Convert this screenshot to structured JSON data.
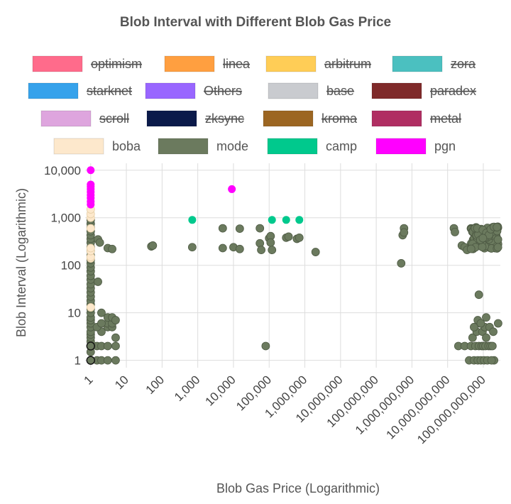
{
  "chart_data": {
    "type": "scatter",
    "title": "Blob Interval with Different Blob Gas Price",
    "xlabel": "Blob Gas Price (Logarithmic)",
    "ylabel": "Blob Interval (Logarithmic)",
    "xscale": "log",
    "yscale": "log",
    "xlim": [
      0.7,
      300000000000
    ],
    "ylim": [
      0.7,
      14000
    ],
    "grid": true,
    "legend_position": "top",
    "x_ticks": [
      1,
      10,
      100,
      1000,
      10000,
      100000,
      1000000,
      10000000,
      100000000,
      1000000000,
      10000000000,
      100000000000
    ],
    "x_tick_labels": [
      "1",
      "10",
      "100",
      "1,000",
      "10,000",
      "100,000",
      "1,000,000",
      "10,000,000",
      "100,000,000",
      "1,000,000,000",
      "10,000,000,000",
      "100,000,000,000"
    ],
    "y_ticks": [
      1,
      10,
      100,
      1000,
      10000
    ],
    "y_tick_labels": [
      "1",
      "10",
      "100",
      "1,000",
      "10,000"
    ],
    "legend": [
      {
        "name": "optimism",
        "color": "#ff6b8b",
        "hidden": true
      },
      {
        "name": "linea",
        "color": "#ff9f40",
        "hidden": true
      },
      {
        "name": "arbitrum",
        "color": "#ffcd56",
        "hidden": true
      },
      {
        "name": "zora",
        "color": "#4bc0c0",
        "hidden": true
      },
      {
        "name": "starknet",
        "color": "#36a2eb",
        "hidden": true
      },
      {
        "name": "Others",
        "color": "#9966ff",
        "hidden": true
      },
      {
        "name": "base",
        "color": "#c9cbcf",
        "hidden": true
      },
      {
        "name": "paradex",
        "color": "#7f2a2a",
        "hidden": true
      },
      {
        "name": "scroll",
        "color": "#dea5de",
        "hidden": true
      },
      {
        "name": "zksync",
        "color": "#0b1a4a",
        "hidden": true
      },
      {
        "name": "kroma",
        "color": "#9c6622",
        "hidden": true
      },
      {
        "name": "metal",
        "color": "#b02e62",
        "hidden": true
      },
      {
        "name": "boba",
        "color": "#fde8cc",
        "hidden": false
      },
      {
        "name": "mode",
        "color": "#6b7a5e",
        "hidden": false
      },
      {
        "name": "camp",
        "color": "#00c98d",
        "hidden": false
      },
      {
        "name": "pgn",
        "color": "#ff00ff",
        "hidden": false
      }
    ],
    "series": [
      {
        "name": "mode",
        "color": "#6b7a5e",
        "points": [
          [
            1,
            1
          ],
          [
            1,
            1.5
          ],
          [
            1,
            2
          ],
          [
            1,
            2.5
          ],
          [
            1,
            3
          ],
          [
            1,
            3.5
          ],
          [
            1,
            4
          ],
          [
            1,
            5
          ],
          [
            1,
            6
          ],
          [
            1,
            7
          ],
          [
            1,
            8
          ],
          [
            1,
            10
          ],
          [
            1,
            12
          ],
          [
            1,
            15
          ],
          [
            1,
            18
          ],
          [
            1,
            22
          ],
          [
            1,
            27
          ],
          [
            1,
            33
          ],
          [
            1,
            40
          ],
          [
            1,
            50
          ],
          [
            1,
            60
          ],
          [
            1,
            75
          ],
          [
            1,
            90
          ],
          [
            1,
            110
          ],
          [
            1,
            130
          ],
          [
            1,
            160
          ],
          [
            1,
            200
          ],
          [
            1,
            240
          ],
          [
            1,
            300
          ],
          [
            1,
            360
          ],
          [
            1,
            430
          ],
          [
            1,
            520
          ],
          [
            1,
            620
          ],
          [
            1,
            750
          ],
          [
            1,
            900
          ],
          [
            1.5,
            1
          ],
          [
            2,
            1
          ],
          [
            1.5,
            2
          ],
          [
            2,
            2
          ],
          [
            2,
            4
          ],
          [
            1.5,
            5
          ],
          [
            3,
            5
          ],
          [
            3,
            6
          ],
          [
            4,
            5
          ],
          [
            4,
            6
          ],
          [
            2,
            6
          ],
          [
            2,
            10
          ],
          [
            3,
            8
          ],
          [
            4,
            8
          ],
          [
            5,
            7
          ],
          [
            5,
            3
          ],
          [
            5,
            2
          ],
          [
            5,
            1
          ],
          [
            3,
            1
          ],
          [
            3,
            2
          ],
          [
            1.6,
            45
          ],
          [
            1.6,
            350
          ],
          [
            1.8,
            300
          ],
          [
            3,
            230
          ],
          [
            4,
            220
          ],
          [
            50,
            250
          ],
          [
            55,
            260
          ],
          [
            700,
            240
          ],
          [
            5000,
            600
          ],
          [
            5000,
            230
          ],
          [
            10000,
            240
          ],
          [
            15000,
            590
          ],
          [
            15000,
            220
          ],
          [
            55000,
            600
          ],
          [
            55000,
            290
          ],
          [
            60000,
            210
          ],
          [
            80000,
            2
          ],
          [
            100000,
            370
          ],
          [
            110000,
            410
          ],
          [
            110000,
            300
          ],
          [
            120000,
            210
          ],
          [
            300000,
            380
          ],
          [
            350000,
            400
          ],
          [
            600000,
            360
          ],
          [
            700000,
            380
          ],
          [
            2000000,
            190
          ],
          [
            500000000,
            110
          ],
          [
            550000000,
            430
          ],
          [
            600000000,
            600
          ],
          [
            600000000,
            490
          ],
          [
            15000000000,
            600
          ],
          [
            16000000000,
            500
          ],
          [
            25000000000,
            260
          ],
          [
            30000000000,
            240
          ],
          [
            35000000000,
            210
          ],
          [
            200000000000,
            1
          ],
          [
            20000000000,
            2
          ],
          [
            30000000000,
            2
          ],
          [
            40000000000,
            1
          ],
          [
            45000000000,
            2
          ],
          [
            50000000000,
            3
          ],
          [
            55000000000,
            1
          ],
          [
            60000000000,
            2
          ],
          [
            65000000000,
            4
          ],
          [
            70000000000,
            1
          ],
          [
            75000000000,
            2
          ],
          [
            80000000000,
            6
          ],
          [
            85000000000,
            1
          ],
          [
            90000000000,
            2
          ],
          [
            95000000000,
            4
          ],
          [
            100000000000,
            2
          ],
          [
            105000000000,
            1
          ],
          [
            110000000000,
            5
          ],
          [
            115000000000,
            2
          ],
          [
            120000000000,
            8
          ],
          [
            130000000000,
            1
          ],
          [
            140000000000,
            2
          ],
          [
            150000000000,
            5
          ],
          [
            160000000000,
            2
          ],
          [
            170000000000,
            1
          ],
          [
            180000000000,
            2
          ],
          [
            190000000000,
            4
          ],
          [
            75000000000,
            24
          ],
          [
            70000000000,
            7
          ],
          [
            55000000000,
            5
          ],
          [
            85000000000,
            6
          ],
          [
            120000000000,
            3
          ],
          [
            260000000000,
            6
          ]
        ],
        "cluster": {
          "x_from": 45000000000,
          "x_to": 260000000000,
          "y_from": 220,
          "y_to": 650,
          "count": 140
        }
      },
      {
        "name": "boba",
        "color": "#fde8cc",
        "points": [
          [
            1,
            13
          ],
          [
            1,
            140
          ],
          [
            1,
            150
          ],
          [
            1,
            200
          ],
          [
            1,
            230
          ],
          [
            1,
            600
          ],
          [
            1,
            1000
          ],
          [
            1,
            1200
          ],
          [
            1,
            1500
          ]
        ]
      },
      {
        "name": "camp",
        "color": "#00c98d",
        "points": [
          [
            700,
            900
          ],
          [
            120000,
            900
          ],
          [
            300000,
            900
          ],
          [
            700000,
            900
          ]
        ]
      },
      {
        "name": "pgn",
        "color": "#ff00ff",
        "points": [
          [
            1,
            10000
          ],
          [
            1,
            5000
          ],
          [
            1,
            4500
          ],
          [
            1,
            4000
          ],
          [
            1,
            3500
          ],
          [
            1,
            3000
          ],
          [
            1,
            2600
          ],
          [
            1,
            2200
          ],
          [
            1,
            1900
          ],
          [
            9000,
            4000
          ]
        ]
      }
    ],
    "outlined_points": [
      [
        1,
        1
      ],
      [
        1,
        2
      ]
    ]
  }
}
